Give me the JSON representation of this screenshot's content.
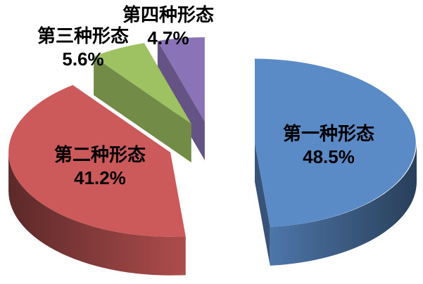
{
  "chart_data": {
    "type": "pie",
    "style": "3d-exploded-pie",
    "background": "#ffffff",
    "label_color": "#000000",
    "start_angle_deg": -90,
    "direction": "clockwise",
    "legend": "none",
    "slices": [
      {
        "label": "第一种形态",
        "value": 48.5,
        "pct_label": "48.5%",
        "color": "#5b8bc7"
      },
      {
        "label": "第二种形态",
        "value": 41.2,
        "pct_label": "41.2%",
        "color": "#cd5a5a"
      },
      {
        "label": "第三种形态",
        "value": 5.6,
        "pct_label": "5.6%",
        "color": "#9ec161"
      },
      {
        "label": "第四种形态",
        "value": 4.7,
        "pct_label": "4.7%",
        "color": "#8b73b7"
      }
    ]
  }
}
